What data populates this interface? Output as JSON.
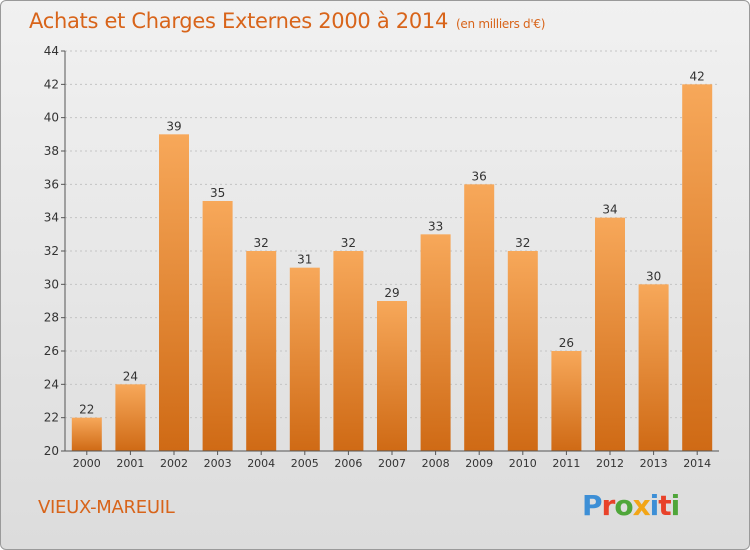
{
  "title": "Achats et Charges Externes 2000 à 2014",
  "unit": "(en milliers d'€)",
  "city": "VIEUX-MAREUIL",
  "logo": {
    "text": "Proxiti",
    "colors": [
      "#3d8fd6",
      "#e8422a",
      "#4fa63a",
      "#f2a516",
      "#3d8fd6",
      "#e8422a",
      "#4fa63a"
    ]
  },
  "colors": {
    "bar_top": "#f7a85a",
    "bar_bottom": "#cf6a15",
    "text": "#d8641a"
  },
  "chart_data": {
    "type": "bar",
    "categories": [
      "2000",
      "2001",
      "2002",
      "2003",
      "2004",
      "2005",
      "2006",
      "2007",
      "2008",
      "2009",
      "2010",
      "2011",
      "2012",
      "2013",
      "2014"
    ],
    "values": [
      22,
      24,
      39,
      35,
      32,
      31,
      32,
      29,
      33,
      36,
      32,
      26,
      34,
      30,
      42
    ],
    "ylim": [
      20,
      44
    ],
    "yticks": [
      20,
      22,
      24,
      26,
      28,
      30,
      32,
      34,
      36,
      38,
      40,
      42,
      44
    ],
    "grid": true
  }
}
